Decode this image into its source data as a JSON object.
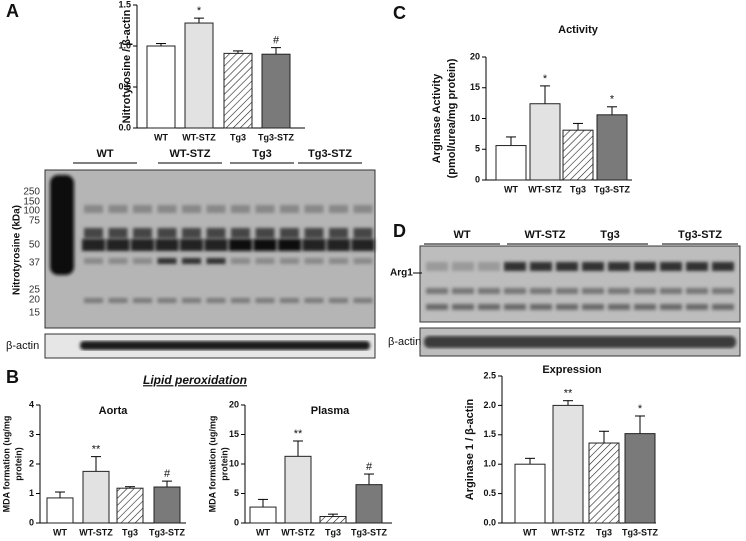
{
  "panels": {
    "a": "A",
    "b": "B",
    "c": "C",
    "d": "D"
  },
  "lipid_title": "Lipid peroxidation",
  "blot_a": {
    "groups": [
      "WT",
      "WT-STZ",
      "Tg3",
      "Tg3-STZ"
    ],
    "y_label": "Nitrotyrosine (kDa)",
    "markers": [
      "250",
      "150",
      "100",
      "75",
      "50",
      "37",
      "25",
      "20",
      "15"
    ],
    "loading": "β-actin"
  },
  "blot_d": {
    "groups": [
      "WT",
      "WT-STZ",
      "Tg3",
      "Tg3-STZ"
    ],
    "band": "Arg1",
    "loading": "β-actin"
  },
  "chart_data": [
    {
      "type": "bar",
      "y_label": [
        "Nitrotyrosine / β-actin"
      ],
      "categories": [
        "WT",
        "WT-STZ",
        "Tg3",
        "Tg3-STZ"
      ],
      "values": [
        1.0,
        1.28,
        0.91,
        0.9
      ],
      "errors": [
        0.03,
        0.06,
        0.03,
        0.08
      ],
      "colors": [
        "#ffffff",
        "#e2e2e2",
        "#ffffff",
        "#7a7a7a"
      ],
      "hatch": [
        false,
        false,
        true,
        false
      ],
      "ylim": [
        0,
        1.5
      ],
      "yticks": [
        {
          "value": 0,
          "label": "0.0"
        },
        0.5,
        {
          "value": 1,
          "label": "1.0"
        },
        1.5
      ],
      "annotations": [
        {
          "category": 1,
          "text": "*"
        },
        {
          "category": 3,
          "text": "#"
        }
      ]
    },
    {
      "type": "bar",
      "title": "Activity",
      "y_label": [
        "Arginase Activity",
        "(pmol/urea/mg protein)"
      ],
      "categories": [
        "WT",
        "WT-STZ",
        "Tg3",
        "Tg3-STZ"
      ],
      "values": [
        5.6,
        12.4,
        8.1,
        10.6
      ],
      "errors": [
        1.4,
        2.9,
        1.1,
        1.3
      ],
      "colors": [
        "#ffffff",
        "#e2e2e2",
        "#ffffff",
        "#7a7a7a"
      ],
      "hatch": [
        false,
        false,
        true,
        false
      ],
      "ylim": [
        0,
        20
      ],
      "yticks": [
        0,
        5,
        10,
        15,
        20
      ],
      "annotations": [
        {
          "category": 1,
          "text": "*"
        },
        {
          "category": 3,
          "text": "*"
        }
      ]
    },
    {
      "type": "bar",
      "title": "Expression",
      "y_label": [
        "Arginase 1 / β-actin"
      ],
      "categories": [
        "WT",
        "WT-STZ",
        "Tg3",
        "Tg3-STZ"
      ],
      "values": [
        1.0,
        2.0,
        1.36,
        1.52
      ],
      "errors": [
        0.1,
        0.08,
        0.2,
        0.3
      ],
      "colors": [
        "#ffffff",
        "#e2e2e2",
        "#ffffff",
        "#7a7a7a"
      ],
      "hatch": [
        false,
        false,
        true,
        false
      ],
      "ylim": [
        0,
        2.5
      ],
      "yticks": [
        {
          "value": 0,
          "label": "0.0"
        },
        0.5,
        {
          "value": 1,
          "label": "1.0"
        },
        1.5,
        {
          "value": 2,
          "label": "2.0"
        },
        2.5
      ],
      "annotations": [
        {
          "category": 1,
          "text": "**"
        },
        {
          "category": 3,
          "text": "*"
        }
      ]
    },
    {
      "type": "bar",
      "title": "Aorta",
      "y_label": [
        "MDA formation (ug/mg",
        "protein)"
      ],
      "categories": [
        "WT",
        "WT-STZ",
        "Tg3",
        "Tg3-STZ"
      ],
      "values": [
        0.85,
        1.75,
        1.18,
        1.22
      ],
      "errors": [
        0.2,
        0.5,
        0.05,
        0.2
      ],
      "colors": [
        "#ffffff",
        "#e2e2e2",
        "#ffffff",
        "#7a7a7a"
      ],
      "hatch": [
        false,
        false,
        true,
        false
      ],
      "ylim": [
        0,
        4
      ],
      "yticks": [
        0,
        1,
        2,
        3,
        4
      ],
      "annotations": [
        {
          "category": 1,
          "text": "**"
        },
        {
          "category": 3,
          "text": "#"
        }
      ]
    },
    {
      "type": "bar",
      "title": "Plasma",
      "y_label": [
        "MDA formation (ug/mg",
        "protein)"
      ],
      "categories": [
        "WT",
        "WT-STZ",
        "Tg3",
        "Tg3-STZ"
      ],
      "values": [
        2.7,
        11.3,
        1.1,
        6.5
      ],
      "errors": [
        1.3,
        2.6,
        0.4,
        1.8
      ],
      "colors": [
        "#ffffff",
        "#e2e2e2",
        "#ffffff",
        "#7a7a7a"
      ],
      "hatch": [
        false,
        false,
        true,
        false
      ],
      "ylim": [
        0,
        20
      ],
      "yticks": [
        0,
        5,
        10,
        15,
        20
      ],
      "annotations": [
        {
          "category": 1,
          "text": "**"
        },
        {
          "category": 3,
          "text": "#"
        }
      ]
    }
  ]
}
